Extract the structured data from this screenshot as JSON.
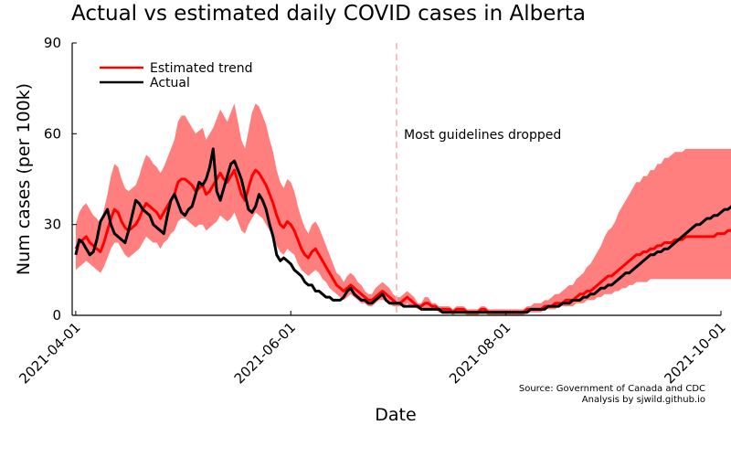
{
  "chart_data": {
    "type": "line",
    "title": "Actual vs estimated daily COVID cases in Alberta",
    "xlabel": "Date",
    "ylabel": "Num cases (per 100k)",
    "x_start": "2021-04-01",
    "x_step_days": 1,
    "xlim": [
      "2021-04-01",
      "2021-09-30"
    ],
    "ylim": [
      0,
      90
    ],
    "yticks": [
      0,
      30,
      60,
      90
    ],
    "xticks": [
      "2021-04-01",
      "2021-06-01",
      "2021-08-01",
      "2021-10-01"
    ],
    "grid": false,
    "legend_position": "top-left",
    "colors": {
      "estimated": "#ff0000",
      "band": "#ff7f7f",
      "actual": "#000000",
      "vline": "#ffaaaa"
    },
    "annotation": {
      "date": "2021-07-01",
      "text": "Most guidelines dropped"
    },
    "source_lines": [
      "Source: Government of Canada and CDC",
      "Analysis by sjwild.github.io"
    ],
    "series": [
      {
        "name": "Estimated trend",
        "values": [
          22,
          24,
          25,
          26,
          24,
          23,
          22,
          21,
          24,
          28,
          32,
          35,
          34,
          31,
          29,
          28,
          29,
          30,
          32,
          35,
          37,
          36,
          35,
          34,
          32,
          34,
          36,
          38,
          40,
          44,
          45,
          45,
          44,
          43,
          41,
          42,
          43,
          40,
          41,
          43,
          45,
          47,
          45,
          44,
          46,
          48,
          44,
          40,
          38,
          42,
          46,
          48,
          47,
          45,
          43,
          40,
          37,
          33,
          30,
          29,
          31,
          30,
          28,
          25,
          22,
          20,
          19,
          21,
          22,
          20,
          18,
          16,
          14,
          12,
          10,
          9,
          8,
          9,
          10,
          9,
          8,
          7,
          6,
          5,
          5,
          6,
          7,
          8,
          7,
          6,
          5,
          4,
          4,
          5,
          6,
          5,
          4,
          3,
          3,
          4,
          4,
          3,
          3,
          2,
          2,
          2,
          2,
          1,
          2,
          2,
          2,
          1,
          1,
          1,
          1,
          2,
          2,
          1,
          1,
          1,
          1,
          1,
          1,
          1,
          1,
          1,
          1,
          1,
          2,
          2,
          2,
          2,
          2,
          3,
          3,
          3,
          4,
          4,
          4,
          5,
          5,
          5,
          6,
          7,
          7,
          8,
          8,
          9,
          10,
          11,
          12,
          13,
          13,
          14,
          15,
          16,
          17,
          18,
          19,
          20,
          20,
          21,
          21,
          22,
          22,
          23,
          23,
          24,
          24,
          24,
          25,
          25,
          25,
          26,
          26,
          26,
          26,
          26,
          26,
          26,
          26,
          26,
          27,
          27,
          27,
          28,
          28,
          29,
          29,
          30,
          30,
          30
        ],
        "band_low": [
          15,
          16,
          17,
          18,
          17,
          16,
          15,
          14,
          16,
          19,
          22,
          24,
          24,
          22,
          20,
          19,
          20,
          21,
          22,
          24,
          26,
          25,
          24,
          24,
          22,
          24,
          25,
          27,
          28,
          31,
          32,
          32,
          31,
          30,
          29,
          30,
          30,
          28,
          29,
          30,
          31,
          33,
          32,
          31,
          32,
          34,
          31,
          28,
          27,
          30,
          32,
          34,
          33,
          32,
          30,
          28,
          26,
          23,
          21,
          20,
          22,
          21,
          20,
          17,
          15,
          14,
          13,
          14,
          15,
          14,
          12,
          11,
          9,
          8,
          7,
          6,
          5,
          6,
          7,
          6,
          5,
          4,
          4,
          3,
          3,
          4,
          5,
          5,
          5,
          4,
          3,
          3,
          3,
          3,
          4,
          3,
          3,
          2,
          2,
          2,
          2,
          2,
          2,
          1,
          1,
          1,
          1,
          0,
          1,
          1,
          1,
          0,
          0,
          0,
          0,
          1,
          1,
          0,
          0,
          0,
          0,
          0,
          0,
          0,
          0,
          0,
          0,
          0,
          1,
          1,
          1,
          1,
          1,
          2,
          2,
          2,
          2,
          3,
          3,
          3,
          3,
          3,
          4,
          4,
          4,
          5,
          5,
          5,
          6,
          6,
          7,
          7,
          7,
          8,
          8,
          9,
          9,
          10,
          10,
          11,
          11,
          11,
          11,
          12,
          12,
          12,
          12,
          12,
          12,
          12,
          12,
          12,
          12,
          12,
          12,
          12,
          12,
          12,
          12,
          12,
          12,
          12,
          12,
          12,
          12,
          12,
          12,
          12,
          12,
          12,
          12,
          12
        ],
        "band_high": [
          30,
          34,
          36,
          37,
          35,
          33,
          32,
          30,
          35,
          40,
          46,
          50,
          49,
          45,
          42,
          41,
          42,
          43,
          46,
          50,
          53,
          52,
          50,
          49,
          47,
          49,
          52,
          55,
          58,
          64,
          66,
          66,
          64,
          62,
          60,
          61,
          62,
          58,
          60,
          62,
          65,
          68,
          66,
          64,
          67,
          70,
          64,
          58,
          55,
          61,
          67,
          70,
          69,
          66,
          63,
          58,
          54,
          48,
          44,
          42,
          45,
          44,
          41,
          36,
          32,
          29,
          27,
          30,
          31,
          29,
          26,
          23,
          20,
          17,
          14,
          13,
          11,
          13,
          14,
          13,
          11,
          10,
          8,
          7,
          7,
          9,
          10,
          11,
          10,
          9,
          7,
          6,
          6,
          7,
          8,
          7,
          6,
          4,
          4,
          6,
          6,
          4,
          4,
          3,
          3,
          3,
          3,
          2,
          3,
          3,
          3,
          2,
          2,
          2,
          2,
          3,
          3,
          2,
          2,
          2,
          2,
          2,
          2,
          2,
          2,
          2,
          2,
          2,
          3,
          3,
          4,
          4,
          4,
          5,
          5,
          6,
          7,
          7,
          8,
          9,
          10,
          10,
          12,
          13,
          14,
          16,
          17,
          19,
          21,
          23,
          26,
          28,
          29,
          31,
          34,
          36,
          38,
          40,
          42,
          44,
          44,
          46,
          46,
          48,
          48,
          50,
          50,
          52,
          52,
          53,
          54,
          54,
          54,
          55,
          55,
          55,
          55,
          55,
          55,
          55,
          55,
          55,
          55,
          55,
          55,
          55,
          55,
          55,
          55,
          55,
          55,
          55
        ]
      },
      {
        "name": "Actual",
        "values": [
          20,
          25,
          24,
          22,
          20,
          21,
          25,
          31,
          33,
          35,
          30,
          27,
          26,
          25,
          24,
          28,
          33,
          38,
          37,
          35,
          34,
          33,
          30,
          29,
          28,
          27,
          33,
          38,
          40,
          37,
          34,
          33,
          35,
          36,
          40,
          44,
          43,
          45,
          49,
          55,
          41,
          38,
          42,
          46,
          50,
          51,
          48,
          45,
          40,
          35,
          34,
          36,
          40,
          38,
          35,
          30,
          26,
          20,
          18,
          19,
          18,
          17,
          15,
          14,
          13,
          11,
          10,
          10,
          8,
          8,
          7,
          6,
          6,
          5,
          5,
          5,
          6,
          8,
          9,
          7,
          6,
          5,
          5,
          4,
          4,
          5,
          6,
          7,
          5,
          4,
          4,
          4,
          4,
          3,
          3,
          3,
          3,
          3,
          2,
          2,
          2,
          2,
          2,
          2,
          1,
          1,
          1,
          1,
          1,
          1,
          1,
          1,
          1,
          1,
          1,
          1,
          1,
          1,
          1,
          1,
          1,
          1,
          1,
          1,
          1,
          1,
          1,
          1,
          1,
          2,
          2,
          2,
          2,
          2,
          3,
          3,
          3,
          3,
          4,
          4,
          4,
          5,
          5,
          5,
          6,
          6,
          7,
          7,
          8,
          9,
          9,
          10,
          10,
          11,
          12,
          13,
          14,
          14,
          15,
          16,
          17,
          18,
          19,
          20,
          20,
          21,
          21,
          22,
          22,
          23,
          24,
          25,
          26,
          27,
          28,
          29,
          30,
          30,
          31,
          32,
          32,
          33,
          33,
          34,
          35,
          35,
          36,
          37,
          38,
          39,
          39,
          38,
          38,
          38
        ]
      }
    ]
  }
}
